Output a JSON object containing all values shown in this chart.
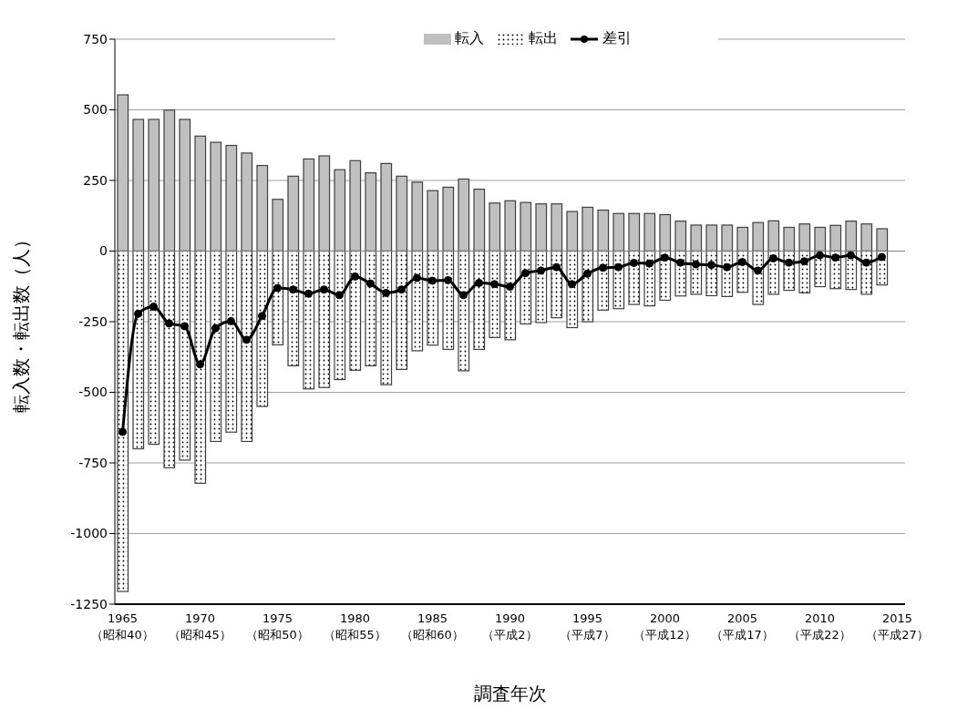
{
  "chart_data": {
    "type": "bar",
    "xlabel": "調査年次",
    "ylabel": "転入数・転出数（人）",
    "categories": [
      "1965\n（昭和40）",
      null,
      null,
      null,
      null,
      "1970\n（昭和45）",
      null,
      null,
      null,
      null,
      "1975\n（昭和50）",
      null,
      null,
      null,
      null,
      "1980\n（昭和55）",
      null,
      null,
      null,
      null,
      "1985\n（昭和60）",
      null,
      null,
      null,
      null,
      "1990\n（平成2）",
      null,
      null,
      null,
      null,
      "1995\n（平成7）",
      null,
      null,
      null,
      null,
      "2000\n（平成12）",
      null,
      null,
      null,
      null,
      "2005\n（平成17）",
      null,
      null,
      null,
      null,
      "2010\n（平成22）",
      null,
      null,
      null,
      null,
      "2015\n（平成27）"
    ],
    "series": [
      {
        "name": "転入",
        "color": "#c0c0c0",
        "values": [
          553,
          466,
          466,
          499,
          466,
          407,
          385,
          374,
          347,
          303,
          183,
          265,
          326,
          337,
          288,
          320,
          277,
          310,
          265,
          244,
          214,
          226,
          255,
          219,
          170,
          178,
          172,
          167,
          167,
          140,
          155,
          145,
          133,
          133,
          133,
          129,
          106,
          92,
          92,
          92,
          84,
          101,
          107,
          84,
          96,
          84,
          91,
          106,
          96,
          79,
          null
        ]
      },
      {
        "name": "転出",
        "color": "#ffffff",
        "values": [
          -1205,
          -700,
          -684,
          -767,
          -740,
          -822,
          -674,
          -641,
          -674,
          -550,
          -332,
          -406,
          -488,
          -483,
          -455,
          -422,
          -406,
          -473,
          -419,
          -353,
          -333,
          -348,
          -424,
          -348,
          -306,
          -314,
          -258,
          -253,
          -236,
          -271,
          -250,
          -209,
          -204,
          -189,
          -194,
          -174,
          -159,
          -153,
          -158,
          -161,
          -146,
          -189,
          -153,
          -139,
          -148,
          -126,
          -133,
          -136,
          -153,
          -120,
          null
        ]
      },
      {
        "name": "差引",
        "type": "line",
        "color": "#000000",
        "values": [
          -640,
          -222,
          -197,
          -256,
          -266,
          -401,
          -273,
          -248,
          -314,
          -230,
          -131,
          -136,
          -151,
          -136,
          -156,
          -90,
          -115,
          -148,
          -136,
          -95,
          -105,
          -103,
          -156,
          -113,
          -117,
          -126,
          -78,
          -69,
          -57,
          -117,
          -80,
          -59,
          -57,
          -42,
          -44,
          -23,
          -41,
          -47,
          -49,
          -57,
          -39,
          -69,
          -26,
          -41,
          -36,
          -15,
          -23,
          -15,
          -41,
          -21,
          null
        ]
      }
    ],
    "stacked": true,
    "ylim": [
      -1250,
      750
    ],
    "yticks": [
      -1250,
      -1000,
      -750,
      -500,
      -250,
      0,
      250,
      500,
      750
    ],
    "grid": "y",
    "legend": "top",
    "marker": "circle",
    "line_style": "solid"
  }
}
